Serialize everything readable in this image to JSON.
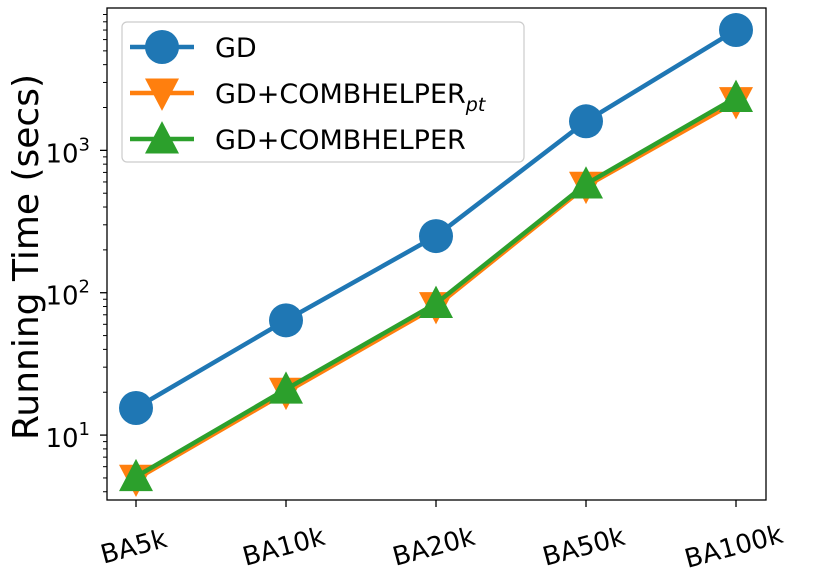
{
  "chart_data": {
    "type": "line",
    "title": "",
    "xlabel": "",
    "ylabel": "Running Time (secs)",
    "yscale": "log",
    "ylim": [
      3.5,
      10000
    ],
    "grid": false,
    "legend_position": "top-left",
    "categories": [
      "BA5k",
      "BA10k",
      "BA20k",
      "BA50k",
      "BA100k"
    ],
    "y_ticks": [
      {
        "value": 10,
        "base": "10",
        "exp": "1"
      },
      {
        "value": 100,
        "base": "10",
        "exp": "2"
      },
      {
        "value": 1000,
        "base": "10",
        "exp": "3"
      }
    ],
    "series": [
      {
        "name": "GD",
        "name_sub": "",
        "color": "#1f77b4",
        "marker": "circle",
        "values": [
          15.5,
          64,
          250,
          1600,
          7000
        ]
      },
      {
        "name": "GD+COMBHELPER",
        "name_sub": "pt",
        "color": "#ff7f0e",
        "marker": "triangle-down",
        "values": [
          4.9,
          20,
          80,
          560,
          2200
        ]
      },
      {
        "name": "GD+COMBHELPER",
        "name_sub": "",
        "color": "#2ca02c",
        "marker": "triangle-up",
        "values": [
          5.1,
          21,
          84,
          580,
          2350
        ]
      }
    ]
  }
}
